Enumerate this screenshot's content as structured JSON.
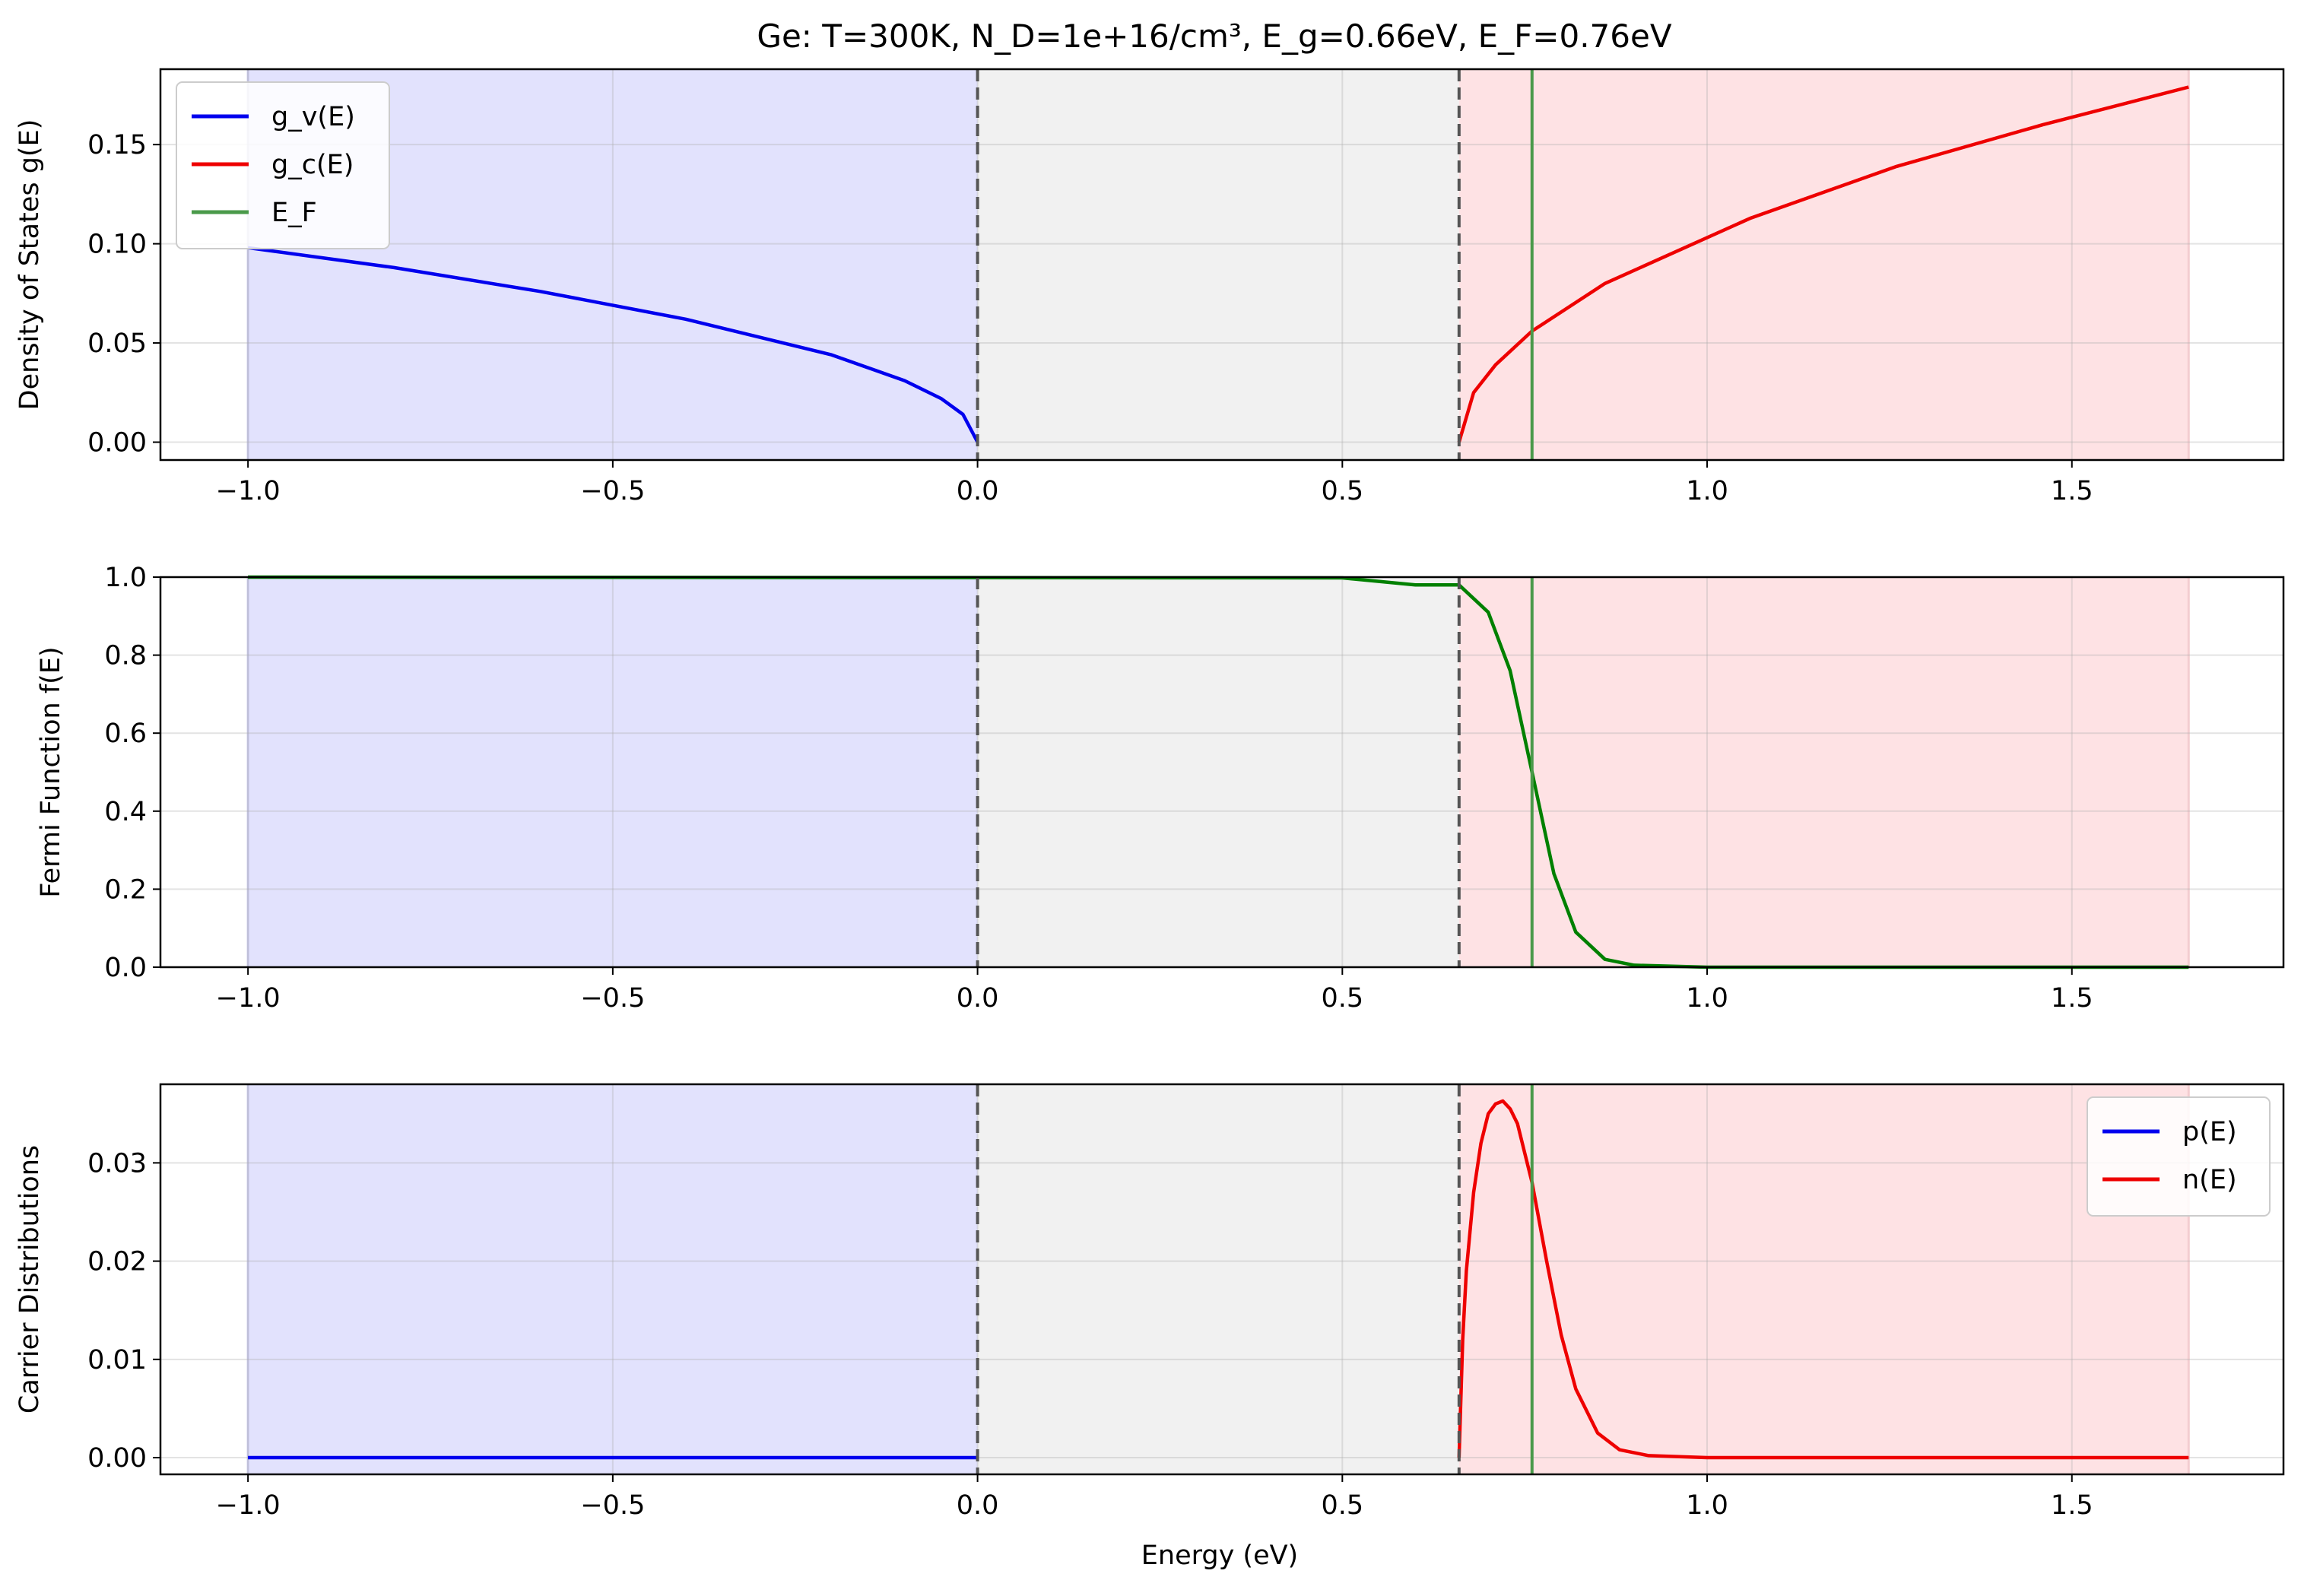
{
  "title": "Ge: T=300K, N_D=1e+16/cm³, E_g=0.66eV, E_F=0.76eV",
  "xlabel": "Energy (eV)",
  "colors": {
    "valence_fill": "#e2e2fd",
    "gap_fill": "#f1f1f1",
    "conduction_fill": "#fee2e4",
    "valence_curve": "#0000ee",
    "conduction_curve": "#ee0000",
    "fermi_line": "#4a9a4a",
    "fermi_curve": "#008000",
    "band_edge": "#555555"
  },
  "legend_top": [
    {
      "label": "g_v(E)",
      "color": "#0000ee"
    },
    {
      "label": "g_c(E)",
      "color": "#ee0000"
    },
    {
      "label": "E_F",
      "color": "#4a9a4a"
    }
  ],
  "legend_bottom": [
    {
      "label": "p(E)",
      "color": "#0000ee"
    },
    {
      "label": "n(E)",
      "color": "#ee0000"
    }
  ],
  "chart_data": [
    {
      "type": "line",
      "ylabel": "Density of States g(E)",
      "xlim": [
        -1.12,
        1.79
      ],
      "ylim": [
        -0.009,
        0.188
      ],
      "xticks": [
        -1.0,
        -0.5,
        0.0,
        0.5,
        1.0,
        1.5
      ],
      "xtick_labels": [
        "−1.0",
        "−0.5",
        "0.0",
        "0.5",
        "1.0",
        "1.5"
      ],
      "yticks": [
        0.0,
        0.05,
        0.1,
        0.15
      ],
      "ytick_labels": [
        "0.00",
        "0.05",
        "0.10",
        "0.15"
      ],
      "grid": true,
      "legend": "top-left",
      "band_regions": [
        {
          "name": "valence band",
          "from": -1.0,
          "to": 0.0
        },
        {
          "name": "band gap",
          "from": 0.0,
          "to": 0.66
        },
        {
          "name": "conduction band",
          "from": 0.66,
          "to": 1.66
        }
      ],
      "band_edges": [
        0.0,
        0.66
      ],
      "fermi_level": 0.76,
      "series": [
        {
          "name": "g_v(E)",
          "x": [
            -1.0,
            -0.8,
            -0.6,
            -0.4,
            -0.2,
            -0.1,
            -0.05,
            -0.02,
            0.0
          ],
          "y": [
            0.098,
            0.088,
            0.076,
            0.062,
            0.044,
            0.031,
            0.022,
            0.014,
            0.0
          ]
        },
        {
          "name": "g_c(E)",
          "x": [
            0.66,
            0.68,
            0.71,
            0.76,
            0.86,
            1.06,
            1.26,
            1.46,
            1.66
          ],
          "y": [
            0.0,
            0.025,
            0.039,
            0.056,
            0.08,
            0.113,
            0.139,
            0.16,
            0.179
          ]
        }
      ]
    },
    {
      "type": "line",
      "ylabel": "Fermi Function f(E)",
      "xlim": [
        -1.12,
        1.79
      ],
      "ylim": [
        0.0,
        1.0
      ],
      "xticks": [
        -1.0,
        -0.5,
        0.0,
        0.5,
        1.0,
        1.5
      ],
      "xtick_labels": [
        "−1.0",
        "−0.5",
        "0.0",
        "0.5",
        "1.0",
        "1.5"
      ],
      "yticks": [
        0.0,
        0.2,
        0.4,
        0.6,
        0.8,
        1.0
      ],
      "ytick_labels": [
        "0.0",
        "0.2",
        "0.4",
        "0.6",
        "0.8",
        "1.0"
      ],
      "grid": true,
      "band_regions": [
        {
          "name": "valence band",
          "from": -1.0,
          "to": 0.0
        },
        {
          "name": "band gap",
          "from": 0.0,
          "to": 0.66
        },
        {
          "name": "conduction band",
          "from": 0.66,
          "to": 1.66
        }
      ],
      "band_edges": [
        0.0,
        0.66
      ],
      "fermi_level": 0.76,
      "series": [
        {
          "name": "f(E)",
          "x": [
            -1.0,
            0.5,
            0.6,
            0.66,
            0.7,
            0.73,
            0.76,
            0.79,
            0.82,
            0.86,
            0.9,
            1.0,
            1.66
          ],
          "y": [
            1.0,
            0.998,
            0.98,
            0.98,
            0.91,
            0.76,
            0.5,
            0.24,
            0.09,
            0.02,
            0.005,
            0.0,
            0.0
          ]
        }
      ]
    },
    {
      "type": "line",
      "ylabel": "Carrier Distributions",
      "xlabel": "Energy (eV)",
      "xlim": [
        -1.12,
        1.79
      ],
      "ylim": [
        -0.0017,
        0.038
      ],
      "xticks": [
        -1.0,
        -0.5,
        0.0,
        0.5,
        1.0,
        1.5
      ],
      "xtick_labels": [
        "−1.0",
        "−0.5",
        "0.0",
        "0.5",
        "1.0",
        "1.5"
      ],
      "yticks": [
        0.0,
        0.01,
        0.02,
        0.03
      ],
      "ytick_labels": [
        "0.00",
        "0.01",
        "0.02",
        "0.03"
      ],
      "grid": true,
      "legend": "top-right",
      "band_regions": [
        {
          "name": "valence band",
          "from": -1.0,
          "to": 0.0
        },
        {
          "name": "band gap",
          "from": 0.0,
          "to": 0.66
        },
        {
          "name": "conduction band",
          "from": 0.66,
          "to": 1.66
        }
      ],
      "band_edges": [
        0.0,
        0.66
      ],
      "fermi_level": 0.76,
      "series": [
        {
          "name": "p(E)",
          "x": [
            -1.0,
            0.0
          ],
          "y": [
            0.0,
            0.0
          ]
        },
        {
          "name": "n(E)",
          "x": [
            0.66,
            0.665,
            0.67,
            0.68,
            0.69,
            0.7,
            0.71,
            0.72,
            0.73,
            0.74,
            0.75,
            0.76,
            0.78,
            0.8,
            0.82,
            0.85,
            0.88,
            0.92,
            1.0,
            1.66
          ],
          "y": [
            0.0,
            0.012,
            0.019,
            0.027,
            0.032,
            0.035,
            0.036,
            0.0363,
            0.0355,
            0.034,
            0.031,
            0.028,
            0.02,
            0.0125,
            0.007,
            0.0025,
            0.0008,
            0.0002,
            0.0,
            0.0
          ]
        }
      ]
    }
  ]
}
